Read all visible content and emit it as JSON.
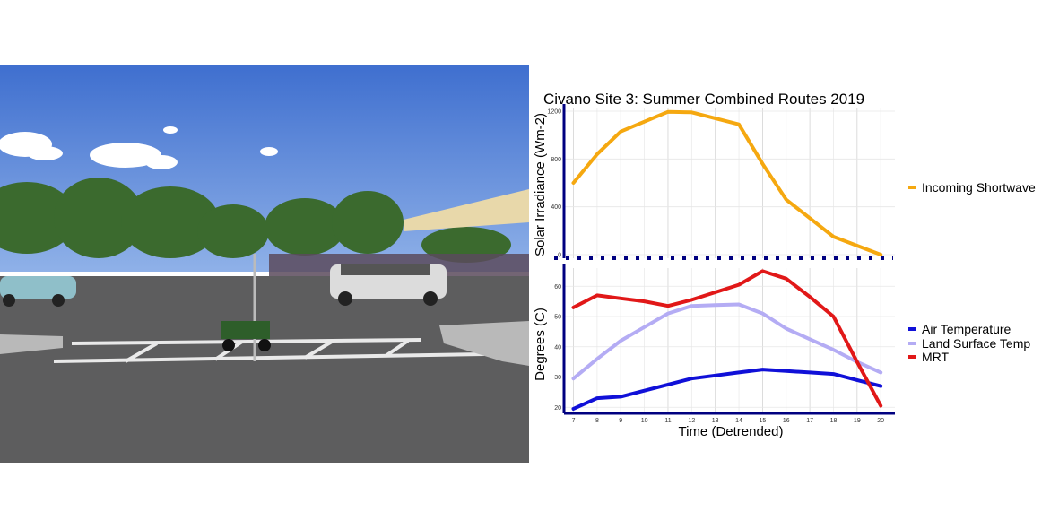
{
  "photo": {
    "sky_color": "#4f7fd3",
    "ground_color": "#5d5d5e",
    "tree_color": "#3b6a2e"
  },
  "chart_data": {
    "type": "line",
    "title": "Civano Site 3: Summer Combined Routes 2019",
    "xlabel": "Time (Detrended)",
    "x_ticks": [
      7,
      8,
      9,
      10,
      11,
      12,
      13,
      14,
      15,
      16,
      17,
      18,
      19,
      20
    ],
    "panels": [
      {
        "name": "top",
        "ylabel": "Solar Irradiance (Wm-2)",
        "ylim": [
          -30,
          1230
        ],
        "y_ticks": [
          0,
          400,
          800,
          1200
        ],
        "series": [
          {
            "name": "Incoming Shortwave",
            "color": "#f5a810",
            "x": [
              7,
              8,
              9,
              11,
              12,
              14,
              15,
              16,
              18,
              20
            ],
            "y": [
              600,
              840,
              1030,
              1195,
              1190,
              1090,
              760,
              460,
              150,
              0
            ]
          }
        ]
      },
      {
        "name": "bottom",
        "ylabel": "Degrees (C)",
        "ylim": [
          18,
          66
        ],
        "y_ticks": [
          20,
          30,
          40,
          50,
          60
        ],
        "series": [
          {
            "name": "Air Temperature",
            "color": "#1010d8",
            "x": [
              7,
              8,
              9,
              10,
              11,
              12,
              13,
              14,
              15,
              16,
              17,
              18,
              19,
              20
            ],
            "y": [
              19.5,
              23,
              23.5,
              25.5,
              27.5,
              29.5,
              30.5,
              31.5,
              32.5,
              32,
              31.5,
              31,
              29,
              27
            ]
          },
          {
            "name": "Land Surface Temp",
            "color": "#b4acf4",
            "x": [
              7,
              8,
              9,
              10,
              11,
              12,
              13,
              14,
              15,
              16,
              17,
              18,
              19,
              20
            ],
            "y": [
              29.5,
              36,
              42,
              46.5,
              51,
              53.5,
              53.8,
              54,
              51,
              46,
              42.5,
              39,
              35,
              31.5
            ]
          },
          {
            "name": "MRT",
            "color": "#e11818",
            "x": [
              7,
              8,
              9,
              10,
              11,
              12,
              13,
              14,
              15,
              16,
              17,
              18,
              19,
              20
            ],
            "y": [
              53,
              57,
              56,
              55,
              53.5,
              55.5,
              58,
              60.5,
              65,
              62.5,
              56.5,
              50,
              35,
              20.5
            ]
          }
        ]
      }
    ],
    "legend": [
      {
        "label": "Incoming Shortwave",
        "color": "#f5a810"
      },
      {
        "label": "Air Temperature",
        "color": "#1010d8"
      },
      {
        "label": "Land Surface Temp",
        "color": "#b4acf4"
      },
      {
        "label": "MRT",
        "color": "#e11818"
      }
    ],
    "grid": true,
    "axis_color": "#000080",
    "legend_position": "right"
  }
}
